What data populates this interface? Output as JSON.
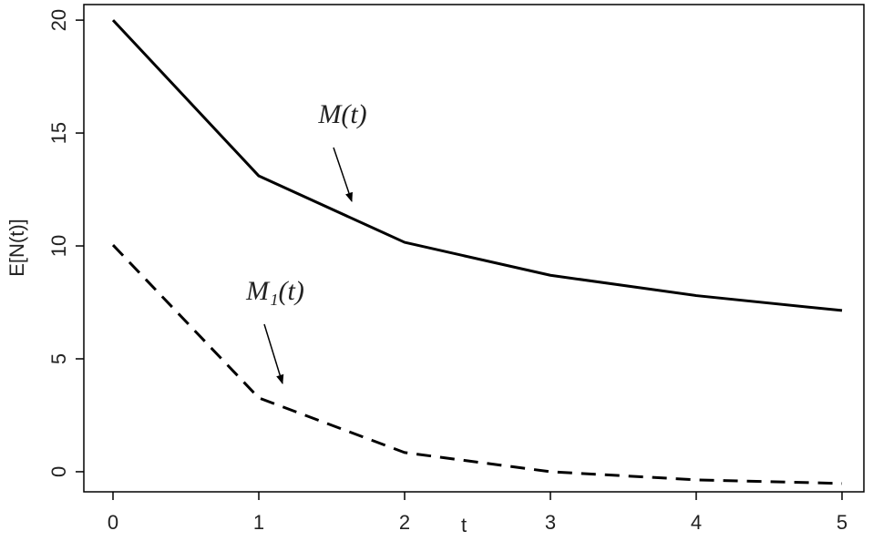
{
  "chart_data": {
    "type": "line",
    "x_label": "t",
    "y_label": "E[N(t)]",
    "x": [
      0,
      1,
      2,
      3,
      4,
      5
    ],
    "series": [
      {
        "name": "M(t)",
        "color": "#000000",
        "dash": false,
        "values": [
          20,
          13.1,
          10.16,
          8.7,
          7.8,
          7.14
        ]
      },
      {
        "name": "M₁(t)",
        "color": "#000000",
        "dash": true,
        "values": [
          10.04,
          3.27,
          0.85,
          0,
          -0.36,
          -0.52
        ]
      }
    ],
    "xlim": [
      -0.2,
      5.15
    ],
    "ylim": [
      -0.89,
      20.69
    ],
    "xticks": [
      0,
      1,
      2,
      3,
      4,
      5
    ],
    "yticks": [
      0,
      5,
      10,
      15,
      20
    ],
    "grid": false
  }
}
